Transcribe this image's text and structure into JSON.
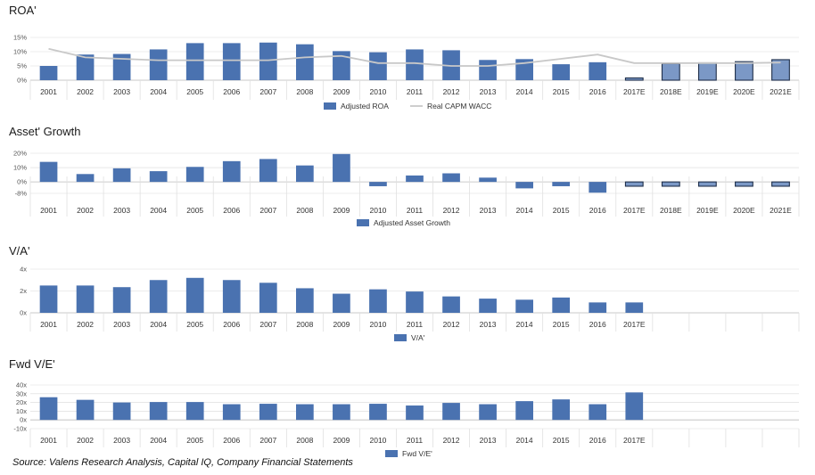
{
  "source": "Source: Valens Research Analysis, Capital IQ, Company Financial Statements",
  "colors": {
    "bar": "#4a72b0",
    "bar_estimate": "#7b98c6",
    "wacc_line": "#c8c8c8",
    "grid": "#d9d9d9",
    "separator": "#e0e0e0"
  },
  "chart_data": [
    {
      "type": "bar",
      "title": "ROA'",
      "categories": [
        "2001",
        "2002",
        "2003",
        "2004",
        "2005",
        "2006",
        "2007",
        "2008",
        "2009",
        "2010",
        "2011",
        "2012",
        "2013",
        "2014",
        "2015",
        "2016",
        "2017E",
        "2018E",
        "2019E",
        "2020E",
        "2021E"
      ],
      "y_ticks": [
        "15%",
        "10%",
        "5%",
        "0%"
      ],
      "ylim": [
        0,
        15
      ],
      "estimate_from_index": 16,
      "series": [
        {
          "name": "Adjusted ROA",
          "type": "bar",
          "values": [
            5,
            9,
            9.2,
            10.8,
            13,
            13,
            13.2,
            12.6,
            10.2,
            9.8,
            10.8,
            10.5,
            7.1,
            7.4,
            5.6,
            6.3,
            0.8,
            5.8,
            6.1,
            6.5,
            7.2
          ]
        },
        {
          "name": "Real CAPM WACC",
          "type": "line",
          "values": [
            11,
            8,
            7.5,
            7,
            7,
            7,
            7,
            8,
            8.5,
            6,
            6,
            5,
            5,
            6,
            7.5,
            9,
            6,
            6,
            6,
            6,
            6.2
          ]
        }
      ]
    },
    {
      "type": "bar",
      "title": "Asset' Growth",
      "categories": [
        "2001",
        "2002",
        "2003",
        "2004",
        "2005",
        "2006",
        "2007",
        "2008",
        "2009",
        "2010",
        "2011",
        "2012",
        "2013",
        "2014",
        "2015",
        "2016",
        "2017E",
        "2018E",
        "2019E",
        "2020E",
        "2021E"
      ],
      "y_ticks": [
        "20%",
        "10%",
        "0%",
        "-8%"
      ],
      "ylim": [
        -8,
        20
      ],
      "estimate_from_index": 16,
      "series": [
        {
          "name": "Adjusted Asset Growth",
          "type": "bar",
          "values": [
            14,
            5.5,
            9.5,
            7.5,
            10.5,
            14.5,
            16,
            11.5,
            19.5,
            -3,
            4.5,
            6,
            3,
            -4.5,
            -3,
            -7.5,
            -3,
            -3,
            -3,
            -3,
            -3
          ]
        }
      ]
    },
    {
      "type": "bar",
      "title": "V/A'",
      "categories": [
        "2001",
        "2002",
        "2003",
        "2004",
        "2005",
        "2006",
        "2007",
        "2008",
        "2009",
        "2010",
        "2011",
        "2012",
        "2013",
        "2014",
        "2015",
        "2016",
        "2017E",
        "",
        "",
        "",
        ""
      ],
      "y_ticks": [
        "4x",
        "2x",
        "0x"
      ],
      "ylim": [
        0,
        4
      ],
      "series": [
        {
          "name": "V/A'",
          "type": "bar",
          "values": [
            2.5,
            2.5,
            2.35,
            3,
            3.2,
            3,
            2.75,
            2.25,
            1.75,
            2.15,
            1.95,
            1.5,
            1.3,
            1.2,
            1.4,
            0.95,
            0.95,
            null,
            null,
            null,
            null
          ]
        }
      ]
    },
    {
      "type": "bar",
      "title": "Fwd V/E'",
      "categories": [
        "2001",
        "2002",
        "2003",
        "2004",
        "2005",
        "2006",
        "2007",
        "2008",
        "2009",
        "2010",
        "2011",
        "2012",
        "2013",
        "2014",
        "2015",
        "2016",
        "2017E",
        "",
        "",
        "",
        ""
      ],
      "y_ticks": [
        "40x",
        "30x",
        "20x",
        "10x",
        "0x",
        "-10x"
      ],
      "ylim": [
        -10,
        40
      ],
      "series": [
        {
          "name": "Fwd V/E'",
          "type": "bar",
          "values": [
            26,
            23,
            20,
            20.5,
            20.5,
            18,
            18.5,
            18,
            18,
            18.5,
            16.5,
            19.5,
            18,
            21.5,
            23.5,
            18,
            31.5,
            null,
            null,
            null,
            null
          ]
        }
      ]
    }
  ]
}
